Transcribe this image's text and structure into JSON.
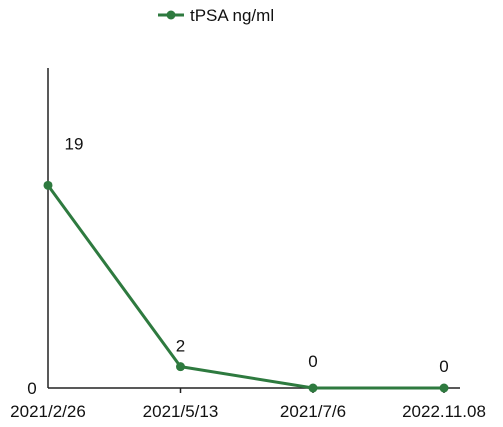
{
  "chart_data": {
    "type": "line",
    "title": "",
    "xlabel": "",
    "ylabel": "",
    "categories": [
      "2021/2/26",
      "2021/5/13",
      "2021/7/6",
      "2022.11.08"
    ],
    "series": [
      {
        "name": "tPSA ng/ml",
        "values": [
          19,
          2,
          0,
          0
        ],
        "color": "#2e7a3f"
      }
    ],
    "data_labels": [
      "19",
      "2",
      "0",
      "0"
    ],
    "y_tick_labels": [
      "0"
    ],
    "ylim": [
      0,
      30
    ],
    "grid": false,
    "legend_position": "top-center",
    "colors": {
      "series": "#2e7a3f",
      "axis": "#222222",
      "text": "#111111"
    }
  }
}
